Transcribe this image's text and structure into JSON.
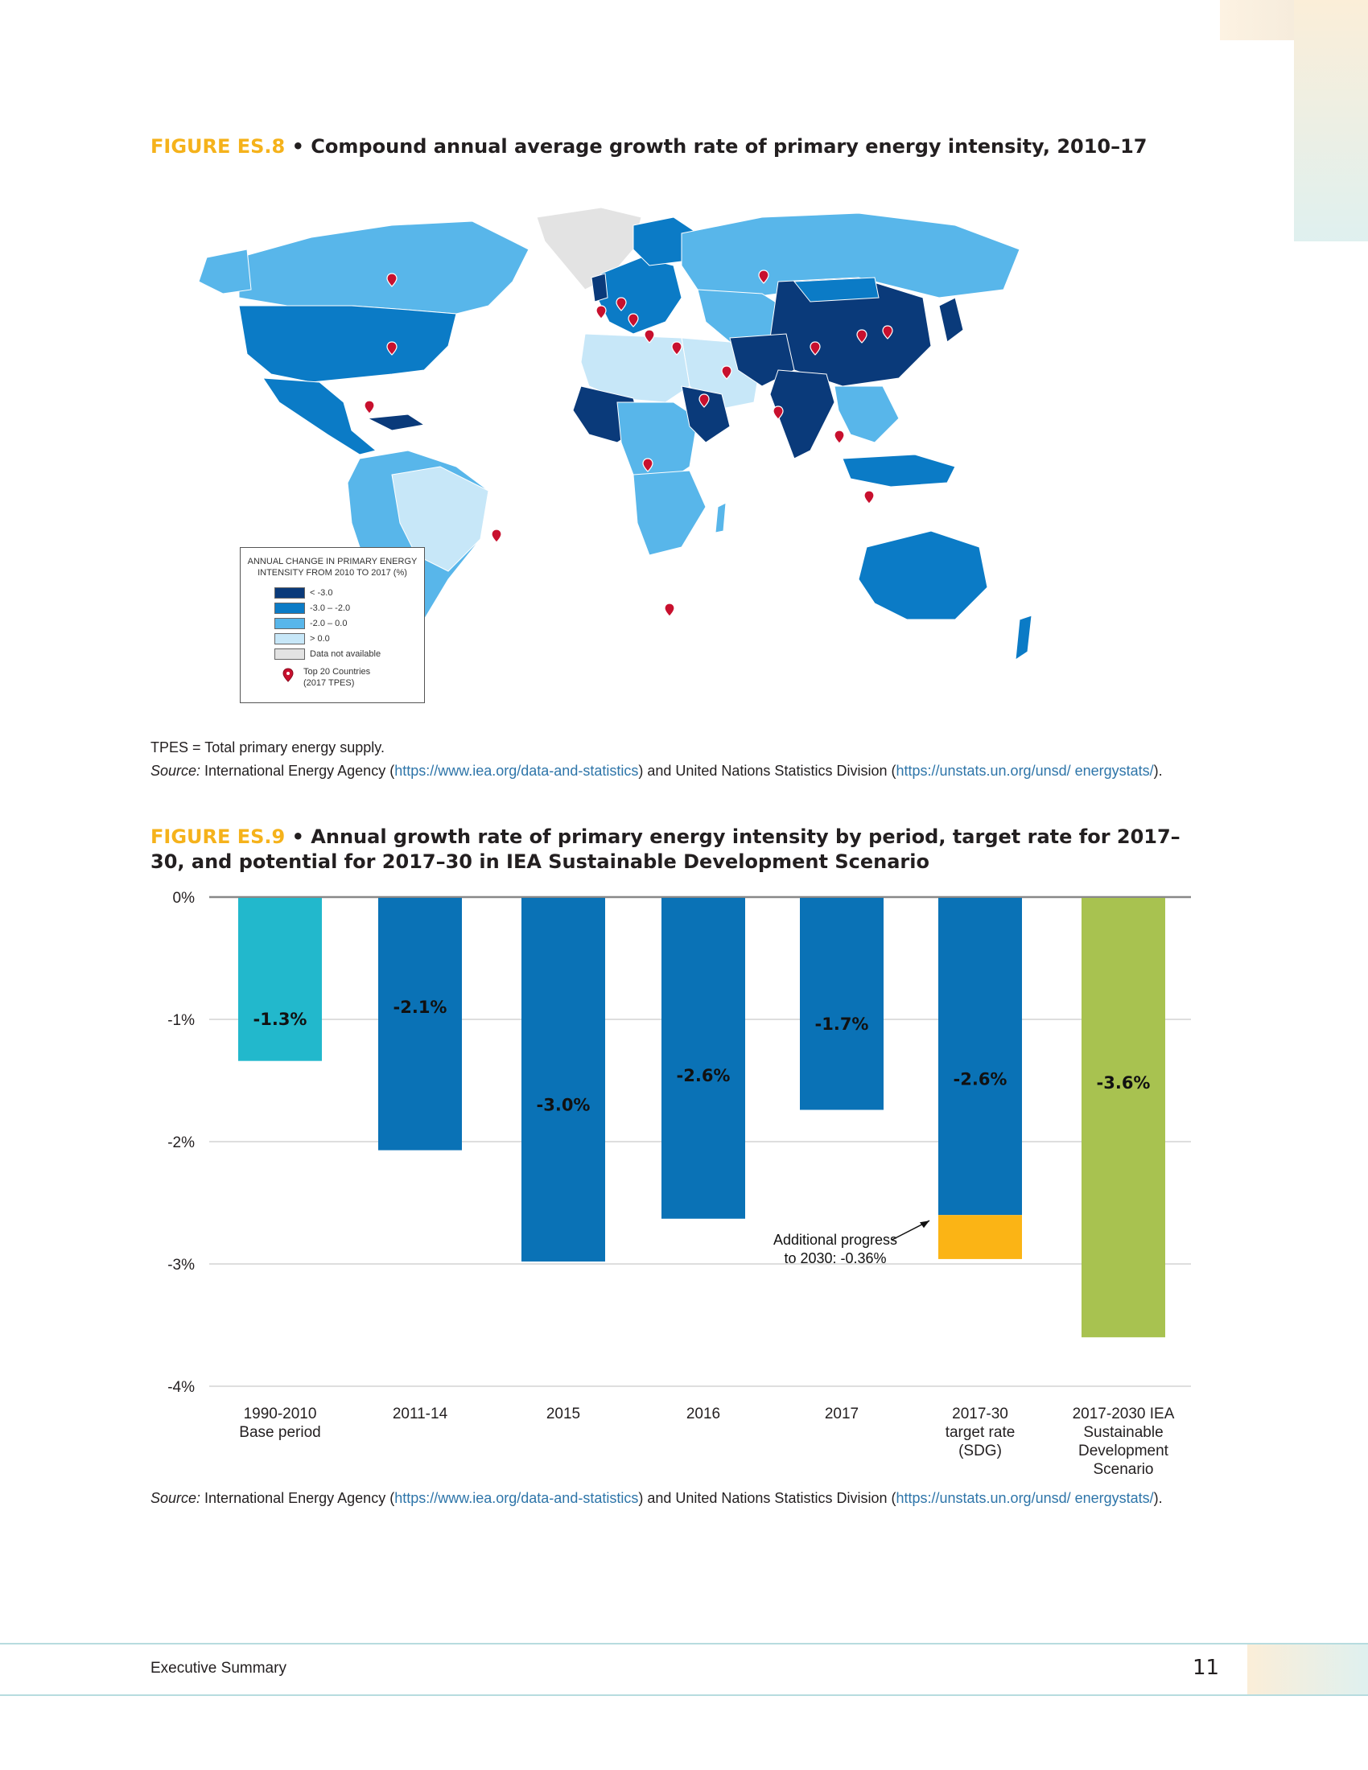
{
  "figure8": {
    "label": "FIGURE ES.8",
    "title": " • Compound annual average growth rate of primary energy intensity, 2010–17",
    "legend": {
      "title_line1": "ANNUAL CHANGE IN PRIMARY ENERGY",
      "title_line2": "INTENSITY FROM 2010 TO 2017 (%)",
      "items": [
        {
          "label": "< -3.0",
          "color": "#0a3a7a"
        },
        {
          "label": "-3.0 – -2.0",
          "color": "#0b7bc6"
        },
        {
          "label": "-2.0 – 0.0",
          "color": "#58b6ea"
        },
        {
          "label": "> 0.0",
          "color": "#c7e7f8"
        },
        {
          "label": "Data not available",
          "color": "#e3e3e3"
        }
      ],
      "pin_label_line1": "Top 20 Countries",
      "pin_label_line2": "(2017 TPES)"
    },
    "note": "TPES = Total primary energy supply.",
    "source_label": "Source:",
    "source_text1": " International Energy Agency (",
    "source_link1": "https://www.iea.org/data-and-statistics",
    "source_text2": ") and United Nations Statistics Division (",
    "source_link2": "https://unstats.un.org/unsd/ energystats/",
    "source_text3": ")."
  },
  "figure9": {
    "label": "FIGURE ES.9",
    "title": " • Annual growth rate of primary energy intensity by period, target rate for 2017–30, and potential for 2017–30 in IEA Sustainable Development Scenario",
    "source_label": "Source:",
    "source_text1": " International Energy Agency (",
    "source_link1": "https://www.iea.org/data-and-statistics",
    "source_text2": ") and United Nations Statistics Division (",
    "source_link2": "https://unstats.un.org/unsd/ energystats/",
    "source_text3": ")."
  },
  "chart_data": {
    "type": "bar",
    "categories": [
      "1990-2010 Base period",
      "2011-14",
      "2015",
      "2016",
      "2017",
      "2017-30 target rate (SDG)",
      "2017-2030 IEA Sustainable Development Scenario"
    ],
    "category_lines": [
      [
        "1990-2010",
        "Base period"
      ],
      [
        "2011-14"
      ],
      [
        "2015"
      ],
      [
        "2016"
      ],
      [
        "2017"
      ],
      [
        "2017-30",
        "target rate",
        "(SDG)"
      ],
      [
        "2017-2030 IEA",
        "Sustainable",
        "Development",
        "Scenario"
      ]
    ],
    "values": [
      -1.34,
      -2.07,
      -2.98,
      -2.63,
      -1.74,
      -2.6,
      -3.6
    ],
    "data_labels": [
      "-1.3%",
      "-2.1%",
      "-3.0%",
      "-2.6%",
      "-1.7%",
      "-2.6%",
      "-3.6%"
    ],
    "colors": [
      "#22b8cc",
      "#0a72b6",
      "#0a72b6",
      "#0a72b6",
      "#0a72b6",
      "#0a72b6",
      "#a8c250"
    ],
    "stacked_extra": {
      "index": 5,
      "value": -0.36,
      "color": "#fbb415"
    },
    "annotation": {
      "line1": "Additional progress",
      "line2": "to 2030: -0.36%"
    },
    "ylim": [
      -4,
      0
    ],
    "yticks": [
      0,
      -1,
      -2,
      -3,
      -4
    ],
    "ytick_labels": [
      "0%",
      "-1%",
      "-2%",
      "-3%",
      "-4%"
    ],
    "grid": true,
    "title": "",
    "xlabel": "",
    "ylabel": ""
  },
  "footer": {
    "left": "Executive Summary",
    "page": "11"
  }
}
